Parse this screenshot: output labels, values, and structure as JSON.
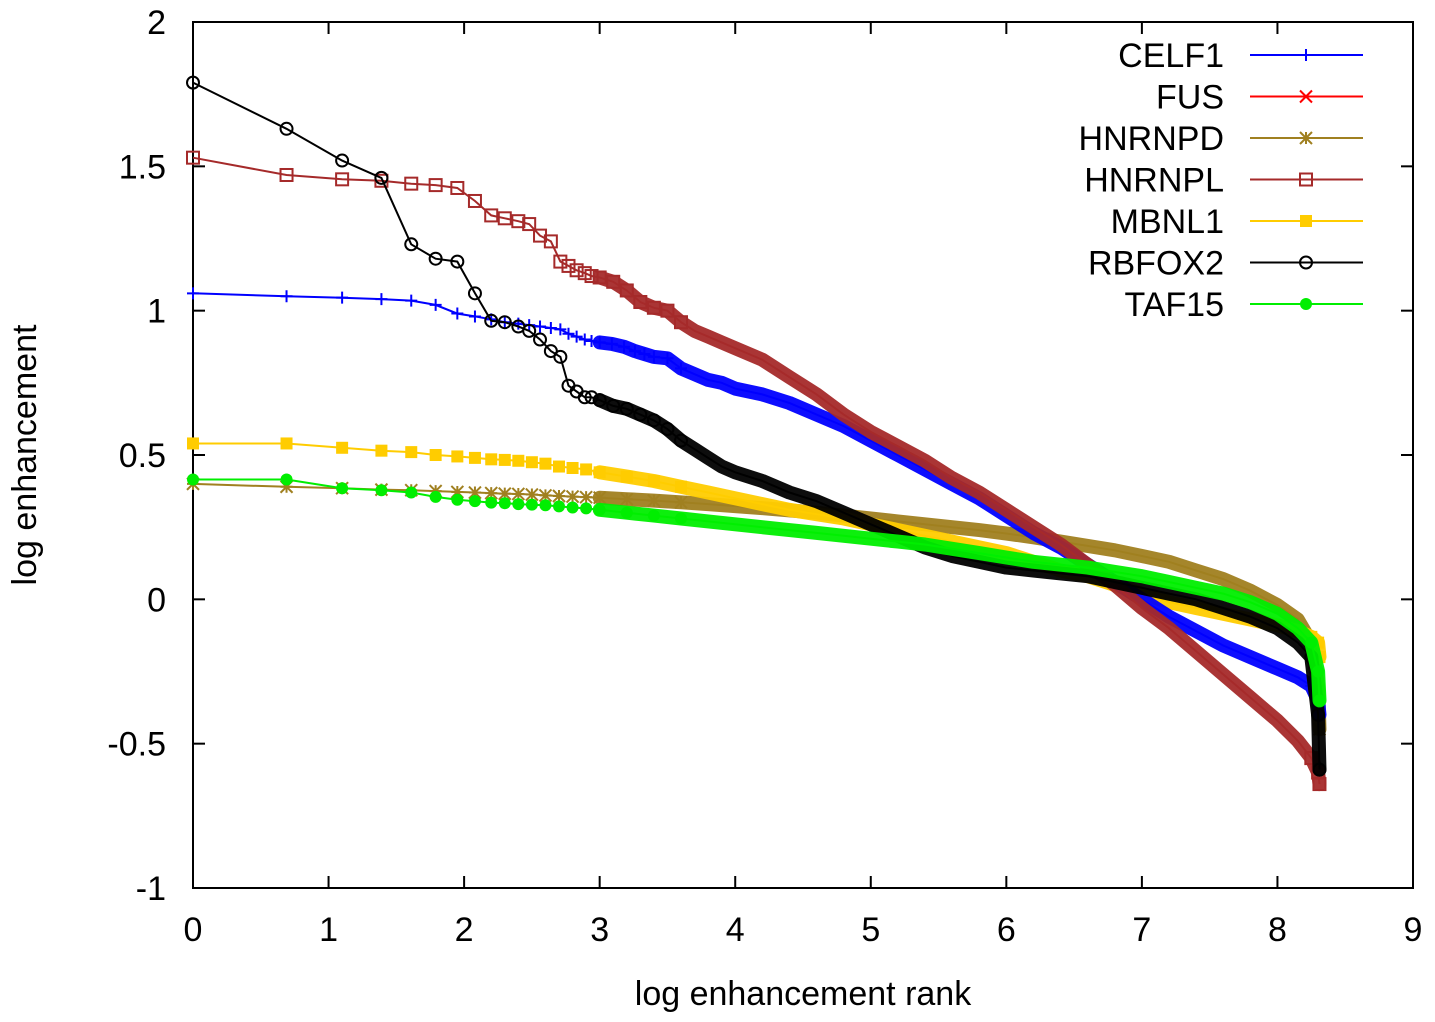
{
  "chart_data": {
    "type": "line",
    "title": "",
    "xlabel": "log enhancement rank",
    "ylabel": "log enhancement",
    "xlim": [
      0,
      9
    ],
    "ylim": [
      -1,
      2
    ],
    "xticks": [
      0,
      1,
      2,
      3,
      4,
      5,
      6,
      7,
      8,
      9
    ],
    "yticks": [
      -1,
      -0.5,
      0,
      0.5,
      1,
      1.5,
      2
    ],
    "xtick_labels": [
      "0",
      "1",
      "2",
      "3",
      "4",
      "5",
      "6",
      "7",
      "8",
      "9"
    ],
    "ytick_labels": [
      "-1",
      "-0.5",
      "0",
      "0.5",
      "1",
      "1.5",
      "2"
    ],
    "grid": false,
    "legend_position": "top-right",
    "series": [
      {
        "name": "CELF1",
        "color": "#0000ff",
        "marker": "plus",
        "points": [
          [
            0,
            1.06
          ],
          [
            0.69,
            1.05
          ],
          [
            1.1,
            1.045
          ],
          [
            1.39,
            1.04
          ],
          [
            1.61,
            1.035
          ],
          [
            1.79,
            1.02
          ],
          [
            1.95,
            0.99
          ],
          [
            2.08,
            0.98
          ],
          [
            2.2,
            0.97
          ],
          [
            2.3,
            0.96
          ],
          [
            2.4,
            0.955
          ],
          [
            2.48,
            0.95
          ],
          [
            2.56,
            0.945
          ],
          [
            2.64,
            0.94
          ],
          [
            2.71,
            0.935
          ],
          [
            2.77,
            0.92
          ],
          [
            2.83,
            0.91
          ],
          [
            2.89,
            0.9
          ],
          [
            2.94,
            0.895
          ],
          [
            3.0,
            0.89
          ],
          [
            3.09,
            0.885
          ],
          [
            3.18,
            0.875
          ],
          [
            3.26,
            0.86
          ],
          [
            3.33,
            0.85
          ],
          [
            3.4,
            0.84
          ],
          [
            3.5,
            0.835
          ],
          [
            3.6,
            0.8
          ],
          [
            3.7,
            0.78
          ],
          [
            3.8,
            0.76
          ],
          [
            3.9,
            0.75
          ],
          [
            4.0,
            0.73
          ],
          [
            4.2,
            0.71
          ],
          [
            4.4,
            0.68
          ],
          [
            4.6,
            0.64
          ],
          [
            4.8,
            0.6
          ],
          [
            5.0,
            0.55
          ],
          [
            5.2,
            0.5
          ],
          [
            5.4,
            0.45
          ],
          [
            5.6,
            0.4
          ],
          [
            5.8,
            0.35
          ],
          [
            6.0,
            0.29
          ],
          [
            6.2,
            0.23
          ],
          [
            6.4,
            0.18
          ],
          [
            6.6,
            0.12
          ],
          [
            6.8,
            0.06
          ],
          [
            7.0,
            0.0
          ],
          [
            7.2,
            -0.06
          ],
          [
            7.4,
            -0.11
          ],
          [
            7.6,
            -0.16
          ],
          [
            7.8,
            -0.2
          ],
          [
            8.0,
            -0.24
          ],
          [
            8.15,
            -0.27
          ],
          [
            8.25,
            -0.3
          ],
          [
            8.3,
            -0.35
          ],
          [
            8.31,
            -0.4
          ]
        ]
      },
      {
        "name": "FUS",
        "color": "#ff0000",
        "marker": "cross",
        "points": []
      },
      {
        "name": "HNRNPD",
        "color": "#a08020",
        "marker": "star",
        "points": [
          [
            0,
            0.4
          ],
          [
            0.69,
            0.39
          ],
          [
            1.1,
            0.385
          ],
          [
            1.39,
            0.38
          ],
          [
            1.61,
            0.378
          ],
          [
            1.79,
            0.375
          ],
          [
            1.95,
            0.372
          ],
          [
            2.08,
            0.37
          ],
          [
            2.2,
            0.368
          ],
          [
            2.3,
            0.366
          ],
          [
            2.4,
            0.365
          ],
          [
            2.5,
            0.363
          ],
          [
            2.6,
            0.36
          ],
          [
            2.7,
            0.358
          ],
          [
            2.8,
            0.356
          ],
          [
            2.9,
            0.354
          ],
          [
            3.0,
            0.352
          ],
          [
            3.2,
            0.347
          ],
          [
            3.4,
            0.342
          ],
          [
            3.6,
            0.336
          ],
          [
            3.8,
            0.33
          ],
          [
            4.0,
            0.323
          ],
          [
            4.2,
            0.316
          ],
          [
            4.4,
            0.308
          ],
          [
            4.6,
            0.3
          ],
          [
            4.8,
            0.29
          ],
          [
            5.0,
            0.28
          ],
          [
            5.2,
            0.27
          ],
          [
            5.4,
            0.26
          ],
          [
            5.6,
            0.25
          ],
          [
            5.8,
            0.24
          ],
          [
            6.0,
            0.228
          ],
          [
            6.2,
            0.215
          ],
          [
            6.4,
            0.2
          ],
          [
            6.6,
            0.185
          ],
          [
            6.8,
            0.17
          ],
          [
            7.0,
            0.15
          ],
          [
            7.2,
            0.13
          ],
          [
            7.4,
            0.1
          ],
          [
            7.6,
            0.07
          ],
          [
            7.8,
            0.03
          ],
          [
            8.0,
            -0.02
          ],
          [
            8.15,
            -0.07
          ],
          [
            8.25,
            -0.15
          ],
          [
            8.3,
            -0.3
          ],
          [
            8.31,
            -0.45
          ]
        ]
      },
      {
        "name": "HNRNPL",
        "color": "#a52a2a",
        "marker": "square-open",
        "points": [
          [
            0,
            1.53
          ],
          [
            0.69,
            1.47
          ],
          [
            1.1,
            1.455
          ],
          [
            1.39,
            1.45
          ],
          [
            1.61,
            1.44
          ],
          [
            1.79,
            1.435
          ],
          [
            1.95,
            1.425
          ],
          [
            2.08,
            1.38
          ],
          [
            2.2,
            1.33
          ],
          [
            2.3,
            1.32
          ],
          [
            2.4,
            1.31
          ],
          [
            2.48,
            1.3
          ],
          [
            2.56,
            1.26
          ],
          [
            2.64,
            1.24
          ],
          [
            2.71,
            1.17
          ],
          [
            2.77,
            1.155
          ],
          [
            2.83,
            1.14
          ],
          [
            2.89,
            1.13
          ],
          [
            2.94,
            1.12
          ],
          [
            3.0,
            1.115
          ],
          [
            3.1,
            1.1
          ],
          [
            3.2,
            1.07
          ],
          [
            3.3,
            1.03
          ],
          [
            3.4,
            1.01
          ],
          [
            3.5,
            1.0
          ],
          [
            3.6,
            0.96
          ],
          [
            3.7,
            0.93
          ],
          [
            3.8,
            0.91
          ],
          [
            3.9,
            0.89
          ],
          [
            4.0,
            0.87
          ],
          [
            4.2,
            0.83
          ],
          [
            4.4,
            0.77
          ],
          [
            4.6,
            0.71
          ],
          [
            4.8,
            0.64
          ],
          [
            5.0,
            0.58
          ],
          [
            5.2,
            0.53
          ],
          [
            5.4,
            0.48
          ],
          [
            5.6,
            0.42
          ],
          [
            5.8,
            0.37
          ],
          [
            6.0,
            0.31
          ],
          [
            6.2,
            0.25
          ],
          [
            6.4,
            0.19
          ],
          [
            6.6,
            0.12
          ],
          [
            6.8,
            0.05
          ],
          [
            7.0,
            -0.03
          ],
          [
            7.2,
            -0.1
          ],
          [
            7.4,
            -0.18
          ],
          [
            7.6,
            -0.26
          ],
          [
            7.8,
            -0.34
          ],
          [
            8.0,
            -0.42
          ],
          [
            8.15,
            -0.49
          ],
          [
            8.25,
            -0.55
          ],
          [
            8.3,
            -0.6
          ],
          [
            8.31,
            -0.64
          ]
        ]
      },
      {
        "name": "MBNL1",
        "color": "#ffcc00",
        "marker": "square-filled",
        "points": [
          [
            0,
            0.54
          ],
          [
            0.69,
            0.54
          ],
          [
            1.1,
            0.525
          ],
          [
            1.39,
            0.515
          ],
          [
            1.61,
            0.51
          ],
          [
            1.79,
            0.5
          ],
          [
            1.95,
            0.495
          ],
          [
            2.08,
            0.49
          ],
          [
            2.2,
            0.485
          ],
          [
            2.3,
            0.483
          ],
          [
            2.4,
            0.48
          ],
          [
            2.5,
            0.475
          ],
          [
            2.6,
            0.47
          ],
          [
            2.7,
            0.46
          ],
          [
            2.8,
            0.455
          ],
          [
            2.9,
            0.45
          ],
          [
            3.0,
            0.44
          ],
          [
            3.2,
            0.425
          ],
          [
            3.4,
            0.41
          ],
          [
            3.6,
            0.39
          ],
          [
            3.8,
            0.37
          ],
          [
            4.0,
            0.35
          ],
          [
            4.2,
            0.33
          ],
          [
            4.4,
            0.31
          ],
          [
            4.6,
            0.295
          ],
          [
            4.8,
            0.28
          ],
          [
            5.0,
            0.26
          ],
          [
            5.2,
            0.24
          ],
          [
            5.4,
            0.22
          ],
          [
            5.6,
            0.2
          ],
          [
            5.8,
            0.18
          ],
          [
            6.0,
            0.16
          ],
          [
            6.2,
            0.13
          ],
          [
            6.4,
            0.1
          ],
          [
            6.6,
            0.08
          ],
          [
            6.8,
            0.05
          ],
          [
            7.0,
            0.02
          ],
          [
            7.2,
            -0.01
          ],
          [
            7.4,
            -0.03
          ],
          [
            7.6,
            -0.05
          ],
          [
            7.8,
            -0.07
          ],
          [
            8.0,
            -0.09
          ],
          [
            8.15,
            -0.11
          ],
          [
            8.25,
            -0.13
          ],
          [
            8.3,
            -0.15
          ],
          [
            8.31,
            -0.2
          ]
        ]
      },
      {
        "name": "RBFOX2",
        "color": "#000000",
        "marker": "circle-open",
        "points": [
          [
            0,
            1.79
          ],
          [
            0.69,
            1.63
          ],
          [
            1.1,
            1.52
          ],
          [
            1.39,
            1.46
          ],
          [
            1.61,
            1.23
          ],
          [
            1.79,
            1.18
          ],
          [
            1.95,
            1.17
          ],
          [
            2.08,
            1.06
          ],
          [
            2.2,
            0.965
          ],
          [
            2.3,
            0.96
          ],
          [
            2.4,
            0.945
          ],
          [
            2.48,
            0.93
          ],
          [
            2.56,
            0.9
          ],
          [
            2.64,
            0.86
          ],
          [
            2.71,
            0.84
          ],
          [
            2.77,
            0.74
          ],
          [
            2.83,
            0.72
          ],
          [
            2.89,
            0.7
          ],
          [
            2.94,
            0.7
          ],
          [
            3.0,
            0.69
          ],
          [
            3.1,
            0.67
          ],
          [
            3.2,
            0.66
          ],
          [
            3.3,
            0.64
          ],
          [
            3.4,
            0.62
          ],
          [
            3.5,
            0.59
          ],
          [
            3.6,
            0.55
          ],
          [
            3.7,
            0.52
          ],
          [
            3.8,
            0.49
          ],
          [
            3.9,
            0.46
          ],
          [
            4.0,
            0.44
          ],
          [
            4.2,
            0.41
          ],
          [
            4.4,
            0.37
          ],
          [
            4.6,
            0.34
          ],
          [
            4.8,
            0.3
          ],
          [
            5.0,
            0.26
          ],
          [
            5.2,
            0.22
          ],
          [
            5.4,
            0.18
          ],
          [
            5.6,
            0.15
          ],
          [
            5.8,
            0.13
          ],
          [
            6.0,
            0.11
          ],
          [
            6.2,
            0.1
          ],
          [
            6.4,
            0.09
          ],
          [
            6.6,
            0.08
          ],
          [
            6.8,
            0.06
          ],
          [
            7.0,
            0.04
          ],
          [
            7.2,
            0.02
          ],
          [
            7.4,
            0.0
          ],
          [
            7.6,
            -0.03
          ],
          [
            7.8,
            -0.06
          ],
          [
            8.0,
            -0.1
          ],
          [
            8.15,
            -0.15
          ],
          [
            8.25,
            -0.2
          ],
          [
            8.3,
            -0.4
          ],
          [
            8.31,
            -0.59
          ]
        ]
      },
      {
        "name": "TAF15",
        "color": "#00ee00",
        "marker": "circle-filled",
        "points": [
          [
            0,
            0.415
          ],
          [
            0.69,
            0.415
          ],
          [
            1.1,
            0.385
          ],
          [
            1.39,
            0.378
          ],
          [
            1.61,
            0.37
          ],
          [
            1.79,
            0.355
          ],
          [
            1.95,
            0.345
          ],
          [
            2.08,
            0.34
          ],
          [
            2.2,
            0.335
          ],
          [
            2.3,
            0.333
          ],
          [
            2.4,
            0.33
          ],
          [
            2.5,
            0.328
          ],
          [
            2.6,
            0.326
          ],
          [
            2.7,
            0.322
          ],
          [
            2.8,
            0.318
          ],
          [
            2.9,
            0.315
          ],
          [
            3.0,
            0.31
          ],
          [
            3.2,
            0.3
          ],
          [
            3.4,
            0.29
          ],
          [
            3.6,
            0.28
          ],
          [
            3.8,
            0.27
          ],
          [
            4.0,
            0.26
          ],
          [
            4.2,
            0.25
          ],
          [
            4.4,
            0.24
          ],
          [
            4.6,
            0.23
          ],
          [
            4.8,
            0.22
          ],
          [
            5.0,
            0.21
          ],
          [
            5.2,
            0.2
          ],
          [
            5.4,
            0.19
          ],
          [
            5.6,
            0.175
          ],
          [
            5.8,
            0.16
          ],
          [
            6.0,
            0.145
          ],
          [
            6.2,
            0.13
          ],
          [
            6.4,
            0.12
          ],
          [
            6.6,
            0.11
          ],
          [
            6.8,
            0.095
          ],
          [
            7.0,
            0.08
          ],
          [
            7.2,
            0.06
          ],
          [
            7.4,
            0.04
          ],
          [
            7.6,
            0.02
          ],
          [
            7.8,
            -0.01
          ],
          [
            8.0,
            -0.05
          ],
          [
            8.15,
            -0.1
          ],
          [
            8.25,
            -0.15
          ],
          [
            8.3,
            -0.25
          ],
          [
            8.31,
            -0.35
          ]
        ]
      }
    ]
  }
}
